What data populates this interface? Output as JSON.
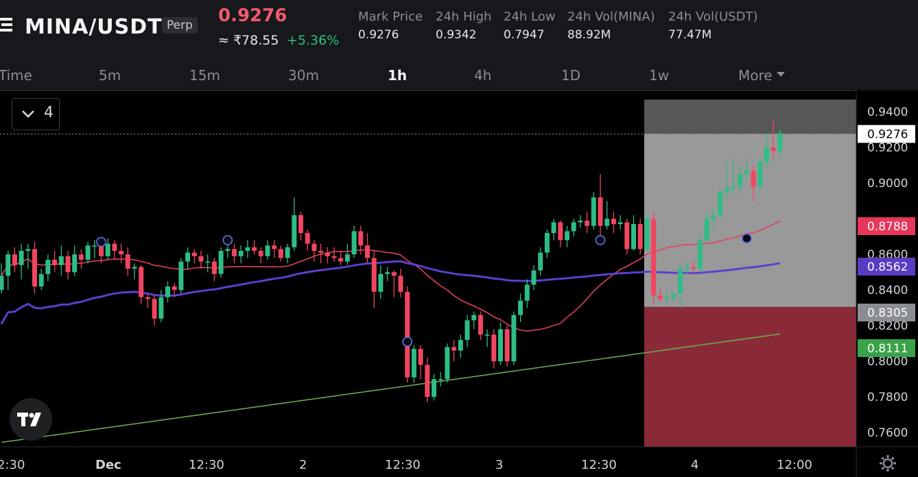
{
  "header": {
    "pair": "MINA/USDT",
    "badge": "Perp",
    "last_price": "0.9276",
    "inr_price": "≈ ₹78.55",
    "change_pct": "+5.36%",
    "stats": [
      {
        "label": "Mark Price",
        "value": "0.9276"
      },
      {
        "label": "24h High",
        "value": "0.9342"
      },
      {
        "label": "24h Low",
        "value": "0.7947"
      },
      {
        "label": "24h Vol(MINA)",
        "value": "88.92M"
      },
      {
        "label": "24h Vol(USDT)",
        "value": "77.47M"
      }
    ]
  },
  "timeframes": {
    "items": [
      "Time",
      "5m",
      "15m",
      "30m",
      "1h",
      "4h",
      "1D",
      "1w"
    ],
    "more": "More",
    "active": "1h"
  },
  "indicator_toggle": {
    "count": "4",
    "icon": "chevron-down-icon"
  },
  "colors": {
    "up": "#2ebd85",
    "down": "#f0465f",
    "ma_short": "#e0405a",
    "ma_mid": "#5b3fd0",
    "ma_long": "#6aa84f",
    "position_zone": "#999999",
    "stop_zone": "#8a2a36"
  },
  "chart_data": {
    "type": "candlestick",
    "symbol": "MINA/USDT",
    "interval": "1h",
    "y_ticks": [
      "0.9400",
      "0.9200",
      "0.9000",
      "0.8600",
      "0.8400",
      "0.8200",
      "0.8000",
      "0.7800",
      "0.7600"
    ],
    "ylim": [
      0.752,
      0.952
    ],
    "x_ticks": [
      "2:30",
      "Dec",
      "12:30",
      "2",
      "12:30",
      "3",
      "12:30",
      "4",
      "12:00"
    ],
    "price_tags": [
      {
        "value": "0.9276",
        "role": "last"
      },
      {
        "value": "0.8788",
        "role": "ma-short"
      },
      {
        "value": "0.8562",
        "role": "ma-mid"
      },
      {
        "value": "0.8305",
        "role": "entry"
      },
      {
        "value": "0.8111",
        "role": "ma-long"
      }
    ],
    "candles": [
      [
        0.84,
        0.848,
        0.838,
        0.855
      ],
      [
        0.848,
        0.86,
        0.84,
        0.862
      ],
      [
        0.86,
        0.854,
        0.85,
        0.864
      ],
      [
        0.854,
        0.862,
        0.846,
        0.866
      ],
      [
        0.862,
        0.863,
        0.852,
        0.866
      ],
      [
        0.863,
        0.842,
        0.838,
        0.867
      ],
      [
        0.842,
        0.849,
        0.84,
        0.852
      ],
      [
        0.849,
        0.857,
        0.845,
        0.86
      ],
      [
        0.857,
        0.854,
        0.85,
        0.862
      ],
      [
        0.854,
        0.859,
        0.848,
        0.865
      ],
      [
        0.859,
        0.85,
        0.846,
        0.862
      ],
      [
        0.85,
        0.86,
        0.848,
        0.865
      ],
      [
        0.86,
        0.857,
        0.852,
        0.863
      ],
      [
        0.857,
        0.865,
        0.855,
        0.867
      ],
      [
        0.865,
        0.865,
        0.858,
        0.868
      ],
      [
        0.865,
        0.859,
        0.855,
        0.869
      ],
      [
        0.859,
        0.866,
        0.857,
        0.869
      ],
      [
        0.866,
        0.862,
        0.857,
        0.868
      ],
      [
        0.862,
        0.86,
        0.855,
        0.866
      ],
      [
        0.86,
        0.852,
        0.848,
        0.864
      ],
      [
        0.852,
        0.853,
        0.846,
        0.855
      ],
      [
        0.853,
        0.836,
        0.832,
        0.854
      ],
      [
        0.836,
        0.835,
        0.83,
        0.838
      ],
      [
        0.835,
        0.824,
        0.82,
        0.837
      ],
      [
        0.824,
        0.836,
        0.822,
        0.84
      ],
      [
        0.836,
        0.842,
        0.833,
        0.845
      ],
      [
        0.842,
        0.84,
        0.836,
        0.844
      ],
      [
        0.84,
        0.856,
        0.838,
        0.858
      ],
      [
        0.856,
        0.861,
        0.852,
        0.864
      ],
      [
        0.861,
        0.859,
        0.855,
        0.863
      ],
      [
        0.859,
        0.856,
        0.852,
        0.862
      ],
      [
        0.856,
        0.856,
        0.85,
        0.86
      ],
      [
        0.856,
        0.849,
        0.845,
        0.858
      ],
      [
        0.849,
        0.862,
        0.847,
        0.864
      ],
      [
        0.862,
        0.863,
        0.858,
        0.866
      ],
      [
        0.863,
        0.859,
        0.855,
        0.866
      ],
      [
        0.859,
        0.862,
        0.855,
        0.865
      ],
      [
        0.862,
        0.864,
        0.858,
        0.868
      ],
      [
        0.864,
        0.862,
        0.86,
        0.868
      ],
      [
        0.862,
        0.859,
        0.855,
        0.864
      ],
      [
        0.859,
        0.865,
        0.857,
        0.868
      ],
      [
        0.865,
        0.863,
        0.858,
        0.868
      ],
      [
        0.863,
        0.858,
        0.856,
        0.865
      ],
      [
        0.858,
        0.864,
        0.855,
        0.866
      ],
      [
        0.864,
        0.882,
        0.862,
        0.892
      ],
      [
        0.882,
        0.872,
        0.868,
        0.884
      ],
      [
        0.872,
        0.866,
        0.862,
        0.874
      ],
      [
        0.866,
        0.862,
        0.856,
        0.868
      ],
      [
        0.862,
        0.861,
        0.855,
        0.866
      ],
      [
        0.861,
        0.859,
        0.855,
        0.864
      ],
      [
        0.859,
        0.858,
        0.856,
        0.864
      ],
      [
        0.858,
        0.856,
        0.854,
        0.862
      ],
      [
        0.856,
        0.86,
        0.854,
        0.866
      ],
      [
        0.86,
        0.873,
        0.858,
        0.876
      ],
      [
        0.873,
        0.865,
        0.86,
        0.876
      ],
      [
        0.865,
        0.858,
        0.855,
        0.872
      ],
      [
        0.858,
        0.839,
        0.83,
        0.862
      ],
      [
        0.839,
        0.849,
        0.835,
        0.854
      ],
      [
        0.849,
        0.85,
        0.845,
        0.853
      ],
      [
        0.85,
        0.848,
        0.836,
        0.851
      ],
      [
        0.848,
        0.839,
        0.836,
        0.852
      ],
      [
        0.839,
        0.791,
        0.788,
        0.842
      ],
      [
        0.791,
        0.807,
        0.788,
        0.809
      ],
      [
        0.807,
        0.798,
        0.79,
        0.809
      ],
      [
        0.798,
        0.78,
        0.777,
        0.802
      ],
      [
        0.78,
        0.79,
        0.778,
        0.793
      ],
      [
        0.79,
        0.79,
        0.786,
        0.794
      ],
      [
        0.79,
        0.808,
        0.788,
        0.81
      ],
      [
        0.808,
        0.806,
        0.8,
        0.812
      ],
      [
        0.806,
        0.812,
        0.802,
        0.815
      ],
      [
        0.812,
        0.823,
        0.808,
        0.826
      ],
      [
        0.823,
        0.826,
        0.818,
        0.828
      ],
      [
        0.826,
        0.815,
        0.812,
        0.828
      ],
      [
        0.815,
        0.815,
        0.808,
        0.818
      ],
      [
        0.815,
        0.8,
        0.796,
        0.818
      ],
      [
        0.8,
        0.818,
        0.798,
        0.822
      ],
      [
        0.818,
        0.8,
        0.797,
        0.82
      ],
      [
        0.8,
        0.826,
        0.798,
        0.828
      ],
      [
        0.826,
        0.834,
        0.822,
        0.838
      ],
      [
        0.834,
        0.843,
        0.83,
        0.846
      ],
      [
        0.843,
        0.851,
        0.84,
        0.854
      ],
      [
        0.851,
        0.861,
        0.848,
        0.864
      ],
      [
        0.861,
        0.872,
        0.858,
        0.874
      ],
      [
        0.872,
        0.878,
        0.868,
        0.88
      ],
      [
        0.878,
        0.868,
        0.864,
        0.879
      ],
      [
        0.868,
        0.873,
        0.864,
        0.876
      ],
      [
        0.873,
        0.878,
        0.87,
        0.88
      ],
      [
        0.878,
        0.879,
        0.875,
        0.882
      ],
      [
        0.879,
        0.876,
        0.872,
        0.884
      ],
      [
        0.876,
        0.892,
        0.874,
        0.895
      ],
      [
        0.892,
        0.876,
        0.87,
        0.905
      ],
      [
        0.876,
        0.88,
        0.874,
        0.89
      ],
      [
        0.88,
        0.877,
        0.872,
        0.884
      ],
      [
        0.877,
        0.878,
        0.874,
        0.882
      ],
      [
        0.878,
        0.863,
        0.86,
        0.88
      ],
      [
        0.863,
        0.877,
        0.862,
        0.882
      ],
      [
        0.877,
        0.863,
        0.86,
        0.88
      ],
      [
        0.863,
        0.88,
        0.862,
        0.882
      ],
      [
        0.88,
        0.837,
        0.832,
        0.884
      ],
      [
        0.837,
        0.835,
        0.833,
        0.841
      ],
      [
        0.835,
        0.836,
        0.831,
        0.84
      ],
      [
        0.836,
        0.838,
        0.833,
        0.839
      ],
      [
        0.838,
        0.852,
        0.83,
        0.854
      ],
      [
        0.852,
        0.853,
        0.849,
        0.856
      ],
      [
        0.853,
        0.852,
        0.849,
        0.856
      ],
      [
        0.852,
        0.868,
        0.85,
        0.872
      ],
      [
        0.868,
        0.88,
        0.866,
        0.884
      ],
      [
        0.88,
        0.882,
        0.874,
        0.886
      ],
      [
        0.882,
        0.895,
        0.88,
        0.897
      ],
      [
        0.895,
        0.897,
        0.89,
        0.912
      ],
      [
        0.897,
        0.898,
        0.894,
        0.914
      ],
      [
        0.898,
        0.905,
        0.894,
        0.91
      ],
      [
        0.905,
        0.907,
        0.901,
        0.914
      ],
      [
        0.907,
        0.898,
        0.89,
        0.91
      ],
      [
        0.898,
        0.912,
        0.896,
        0.914
      ],
      [
        0.912,
        0.92,
        0.909,
        0.928
      ],
      [
        0.92,
        0.918,
        0.914,
        0.936
      ],
      [
        0.918,
        0.928,
        0.915,
        0.93
      ]
    ],
    "markers": [
      {
        "index": 15,
        "value": 0.867
      },
      {
        "index": 34,
        "value": 0.868
      },
      {
        "index": 61,
        "value": 0.811
      },
      {
        "index": 90,
        "value": 0.868
      },
      {
        "index": 112,
        "value": 0.869
      }
    ],
    "position": {
      "entry": 0.8305,
      "take_profit": 0.9276,
      "top": 0.9469,
      "stop": 0.752,
      "start_index": 97
    },
    "grid": false
  }
}
